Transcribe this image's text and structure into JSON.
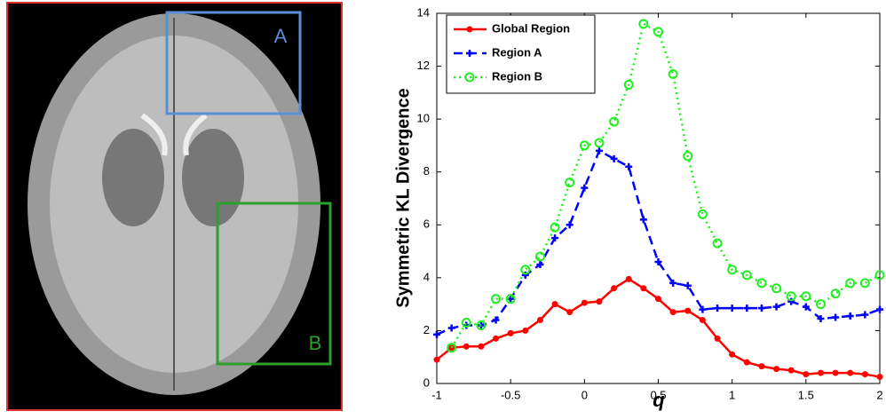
{
  "image": {
    "box_labels": [
      "A",
      "B"
    ]
  },
  "chart_data": {
    "type": "line",
    "x": [
      -1,
      -0.9,
      -0.8,
      -0.7,
      -0.6,
      -0.5,
      -0.4,
      -0.3,
      -0.2,
      -0.1,
      0,
      0.1,
      0.2,
      0.3,
      0.4,
      0.5,
      0.6,
      0.7,
      0.8,
      0.9,
      1,
      1.1,
      1.2,
      1.3,
      1.4,
      1.5,
      1.6,
      1.7,
      1.8,
      1.9,
      2
    ],
    "series": [
      {
        "name": "Global Region",
        "color": "#ff0000",
        "marker": "dot",
        "dash": "solid",
        "values": [
          0.9,
          1.35,
          1.4,
          1.4,
          1.7,
          1.9,
          2.0,
          2.4,
          3.0,
          2.7,
          3.05,
          3.1,
          3.6,
          3.95,
          3.6,
          3.2,
          2.7,
          2.75,
          2.4,
          1.7,
          1.1,
          0.8,
          0.65,
          0.55,
          0.5,
          0.35,
          0.4,
          0.4,
          0.4,
          0.35,
          0.25
        ]
      },
      {
        "name": "Region A",
        "color": "#0000ff",
        "marker": "plus",
        "dash": "dashed",
        "values": [
          1.85,
          2.1,
          2.2,
          2.2,
          2.4,
          3.2,
          4.1,
          4.5,
          5.5,
          6.0,
          7.4,
          8.8,
          8.5,
          8.2,
          6.2,
          4.6,
          3.8,
          3.7,
          2.8,
          2.85,
          2.85,
          2.85,
          2.85,
          2.9,
          3.1,
          2.9,
          2.45,
          2.5,
          2.55,
          2.6,
          2.8
        ]
      },
      {
        "name": "Region B",
        "color": "#22ee22",
        "marker": "circle",
        "dash": "dotted",
        "values": [
          null,
          1.35,
          2.3,
          2.2,
          3.2,
          3.2,
          4.3,
          4.8,
          5.9,
          7.6,
          9.0,
          9.1,
          9.9,
          11.3,
          13.6,
          13.3,
          11.7,
          8.6,
          6.4,
          5.3,
          4.3,
          4.1,
          3.8,
          3.6,
          3.3,
          3.3,
          3.0,
          3.4,
          3.8,
          3.8,
          4.1
        ]
      }
    ],
    "xlabel": "q",
    "ylabel": "Symmetric KL Divergence",
    "xlim": [
      -1,
      2
    ],
    "xticks": [
      -1,
      -0.5,
      0,
      0.5,
      1,
      1.5,
      2
    ],
    "ylim": [
      0,
      14
    ],
    "yticks": [
      0,
      2,
      4,
      6,
      8,
      10,
      12,
      14
    ],
    "legend": "upper-left",
    "grid": false
  }
}
